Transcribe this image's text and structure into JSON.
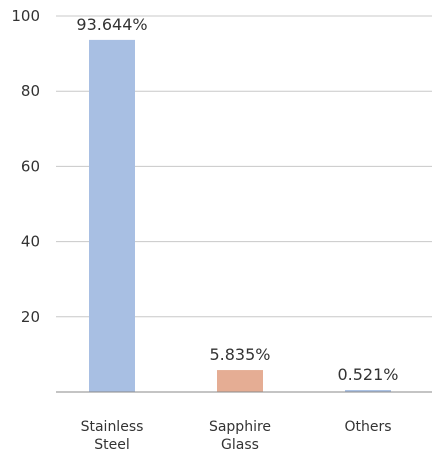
{
  "chart_data": {
    "type": "bar",
    "categories": [
      [
        "Stainless",
        "Steel"
      ],
      [
        "Sapphire",
        "Glass"
      ],
      [
        "Others"
      ]
    ],
    "values": [
      93.644,
      5.835,
      0.521
    ],
    "data_labels": [
      "93.644%",
      "5.835%",
      "0.521%"
    ],
    "colors": [
      "#a8bfe3",
      "#e5ad94",
      "#a8bfe3"
    ],
    "ylim": [
      0,
      100
    ],
    "yticks": [
      20,
      40,
      60,
      80,
      100
    ],
    "ytick_labels": [
      "20",
      "40",
      "60",
      "80",
      "100"
    ],
    "grid": true,
    "legend": "none"
  }
}
